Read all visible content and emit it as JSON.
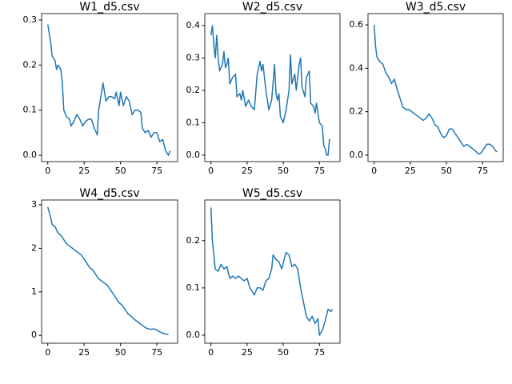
{
  "chart_data": [
    {
      "type": "line",
      "title": "W1_d5.csv",
      "color": "#1f77b4",
      "x": [
        0,
        2,
        3,
        5,
        6,
        7,
        9,
        10,
        11,
        13,
        15,
        16,
        18,
        20,
        22,
        24,
        26,
        28,
        30,
        32,
        34,
        35,
        37,
        38,
        40,
        42,
        44,
        46,
        47,
        49,
        50,
        52,
        54,
        56,
        58,
        60,
        62,
        64,
        65,
        67,
        69,
        71,
        73,
        75,
        77,
        79,
        81,
        83,
        84
      ],
      "values": [
        0.29,
        0.25,
        0.22,
        0.21,
        0.19,
        0.2,
        0.19,
        0.16,
        0.1,
        0.085,
        0.08,
        0.065,
        0.075,
        0.09,
        0.08,
        0.065,
        0.075,
        0.08,
        0.08,
        0.06,
        0.045,
        0.1,
        0.14,
        0.16,
        0.12,
        0.13,
        0.13,
        0.125,
        0.14,
        0.11,
        0.14,
        0.11,
        0.13,
        0.12,
        0.09,
        0.1,
        0.1,
        0.095,
        0.06,
        0.05,
        0.055,
        0.04,
        0.05,
        0.05,
        0.03,
        0.035,
        0.01,
        0.0,
        0.01
      ],
      "xlim": [
        -4.25,
        89.25
      ],
      "xticks": [
        0,
        25,
        50,
        75
      ],
      "ylim": [
        -0.014,
        0.314
      ],
      "yticks": [
        {
          "value": 0,
          "label": "0.0"
        },
        0.1,
        0.2,
        0.3
      ]
    },
    {
      "type": "line",
      "title": "W2_d5.csv",
      "color": "#1f77b4",
      "x": [
        0,
        1,
        2,
        3,
        4,
        5,
        6,
        8,
        9,
        10,
        11,
        12,
        13,
        15,
        17,
        18,
        20,
        21,
        22,
        24,
        26,
        28,
        30,
        32,
        34,
        35,
        36,
        38,
        40,
        42,
        44,
        45,
        46,
        47,
        48,
        50,
        52,
        54,
        55,
        56,
        58,
        59,
        61,
        62,
        63,
        65,
        66,
        68,
        69,
        71,
        72,
        73,
        75,
        77,
        78,
        79,
        80,
        81,
        82
      ],
      "values": [
        0.37,
        0.4,
        0.34,
        0.3,
        0.37,
        0.3,
        0.26,
        0.28,
        0.32,
        0.27,
        0.28,
        0.3,
        0.22,
        0.24,
        0.25,
        0.18,
        0.19,
        0.17,
        0.2,
        0.15,
        0.17,
        0.15,
        0.14,
        0.25,
        0.29,
        0.26,
        0.28,
        0.2,
        0.14,
        0.17,
        0.28,
        0.19,
        0.17,
        0.19,
        0.12,
        0.1,
        0.14,
        0.2,
        0.31,
        0.22,
        0.25,
        0.2,
        0.28,
        0.3,
        0.21,
        0.18,
        0.24,
        0.26,
        0.16,
        0.15,
        0.13,
        0.16,
        0.1,
        0.09,
        0.03,
        0.02,
        0.0,
        0.0,
        0.05
      ],
      "xlim": [
        -4.25,
        89.25
      ],
      "xticks": [
        0,
        25,
        50,
        75
      ],
      "ylim": [
        -0.02,
        0.437
      ],
      "yticks": [
        {
          "value": 0,
          "label": "0.0"
        },
        0.1,
        0.2,
        0.3,
        0.4
      ]
    },
    {
      "type": "line",
      "title": "W3_d5.csv",
      "color": "#1f77b4",
      "x": [
        0,
        1,
        2,
        4,
        6,
        8,
        10,
        12,
        14,
        16,
        18,
        20,
        22,
        24,
        26,
        28,
        30,
        32,
        34,
        36,
        38,
        40,
        42,
        44,
        46,
        48,
        50,
        52,
        54,
        56,
        58,
        60,
        62,
        64,
        66,
        68,
        70,
        72,
        74,
        76,
        78,
        80,
        82,
        84,
        85
      ],
      "values": [
        0.6,
        0.5,
        0.45,
        0.43,
        0.42,
        0.38,
        0.36,
        0.33,
        0.35,
        0.3,
        0.26,
        0.22,
        0.21,
        0.21,
        0.2,
        0.19,
        0.18,
        0.17,
        0.16,
        0.17,
        0.19,
        0.17,
        0.14,
        0.13,
        0.1,
        0.08,
        0.09,
        0.12,
        0.12,
        0.1,
        0.08,
        0.06,
        0.04,
        0.05,
        0.04,
        0.03,
        0.02,
        0.005,
        0.01,
        0.03,
        0.05,
        0.05,
        0.04,
        0.02,
        0.015
      ],
      "xlim": [
        -4.25,
        89.25
      ],
      "xticks": [
        0,
        25,
        50,
        75
      ],
      "ylim": [
        -0.03,
        0.652
      ],
      "yticks": [
        {
          "value": 0,
          "label": "0.0"
        },
        0.2,
        0.4,
        0.6
      ]
    },
    {
      "type": "line",
      "title": "W4_d5.csv",
      "color": "#1f77b4",
      "x": [
        0,
        2,
        3,
        5,
        7,
        9,
        11,
        13,
        15,
        17,
        19,
        21,
        23,
        25,
        27,
        29,
        31,
        33,
        35,
        37,
        39,
        41,
        43,
        45,
        47,
        49,
        51,
        53,
        55,
        57,
        59,
        61,
        63,
        65,
        67,
        69,
        71,
        73,
        75,
        77,
        79,
        81,
        83
      ],
      "values": [
        2.95,
        2.7,
        2.55,
        2.5,
        2.35,
        2.3,
        2.2,
        2.1,
        2.05,
        2.0,
        1.95,
        1.9,
        1.85,
        1.75,
        1.65,
        1.55,
        1.5,
        1.4,
        1.3,
        1.25,
        1.2,
        1.15,
        1.05,
        0.95,
        0.85,
        0.75,
        0.7,
        0.6,
        0.5,
        0.45,
        0.38,
        0.33,
        0.28,
        0.23,
        0.18,
        0.15,
        0.14,
        0.15,
        0.12,
        0.08,
        0.05,
        0.03,
        0.02
      ],
      "xlim": [
        -4.25,
        89.25
      ],
      "xticks": [
        0,
        25,
        50,
        75
      ],
      "ylim": [
        -0.18,
        3.11
      ],
      "yticks": [
        0,
        1,
        2,
        3
      ]
    },
    {
      "type": "line",
      "title": "W5_d5.csv",
      "color": "#1f77b4",
      "x": [
        0,
        1,
        2,
        3,
        5,
        7,
        9,
        11,
        13,
        15,
        17,
        19,
        21,
        23,
        25,
        27,
        29,
        30,
        32,
        34,
        36,
        38,
        40,
        42,
        43,
        45,
        47,
        49,
        51,
        52,
        54,
        56,
        58,
        60,
        62,
        64,
        66,
        68,
        70,
        72,
        74,
        75,
        77,
        79,
        81,
        83,
        84
      ],
      "values": [
        0.27,
        0.2,
        0.17,
        0.14,
        0.135,
        0.15,
        0.14,
        0.145,
        0.12,
        0.125,
        0.12,
        0.125,
        0.12,
        0.115,
        0.12,
        0.1,
        0.09,
        0.085,
        0.1,
        0.1,
        0.095,
        0.115,
        0.12,
        0.14,
        0.17,
        0.16,
        0.155,
        0.14,
        0.165,
        0.175,
        0.17,
        0.145,
        0.15,
        0.14,
        0.1,
        0.07,
        0.04,
        0.03,
        0.04,
        0.025,
        0.035,
        0.0,
        0.01,
        0.03,
        0.055,
        0.05,
        0.055
      ],
      "xlim": [
        -4.25,
        89.25
      ],
      "xticks": [
        0,
        25,
        50,
        75
      ],
      "ylim": [
        -0.017,
        0.286
      ],
      "yticks": [
        {
          "value": 0,
          "label": "0.0"
        },
        0.1,
        0.2
      ]
    }
  ]
}
